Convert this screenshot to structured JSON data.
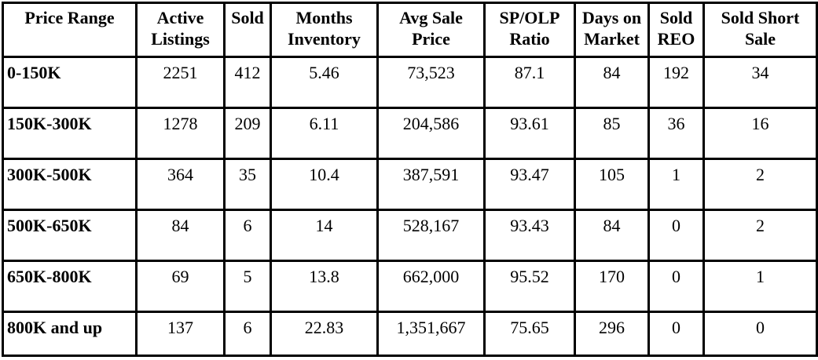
{
  "table": {
    "headers": [
      "Price Range",
      "Active Listings",
      "Sold",
      "Months Inventory",
      "Avg Sale Price",
      "SP/OLP Ratio",
      "Days on Market",
      "Sold REO",
      "Sold Short Sale"
    ],
    "rows": [
      [
        "0-150K",
        "2251",
        "412",
        "5.46",
        "73,523",
        "87.1",
        "84",
        "192",
        "34"
      ],
      [
        "150K-300K",
        "1278",
        "209",
        "6.11",
        "204,586",
        "93.61",
        "85",
        "36",
        "16"
      ],
      [
        "300K-500K",
        "364",
        "35",
        "10.4",
        "387,591",
        "93.47",
        "105",
        "1",
        "2"
      ],
      [
        "500K-650K",
        "84",
        "6",
        "14",
        "528,167",
        "93.43",
        "84",
        "0",
        "2"
      ],
      [
        "650K-800K",
        "69",
        "5",
        "13.8",
        "662,000",
        "95.52",
        "170",
        "0",
        "1"
      ],
      [
        "800K and up",
        "137",
        "6",
        "22.83",
        "1,351,667",
        "75.65",
        "296",
        "0",
        "0"
      ]
    ]
  }
}
